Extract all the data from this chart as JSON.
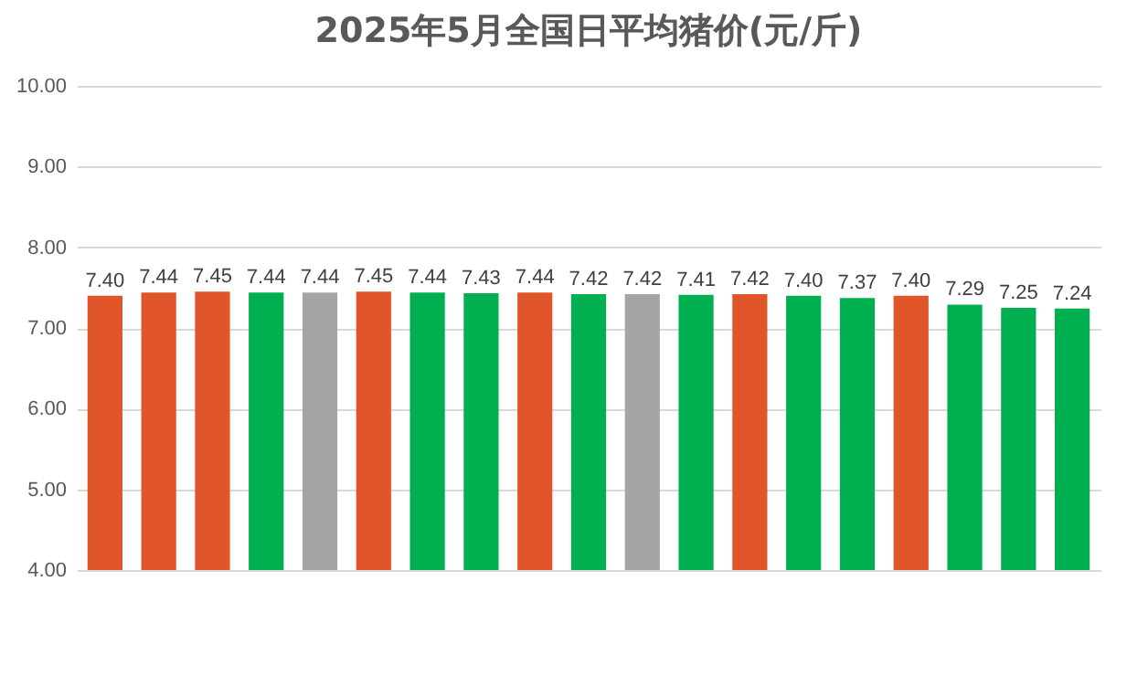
{
  "chart_data": {
    "type": "bar",
    "title": "2025年5月全国日平均猪价(元/斤)",
    "categories": [
      null,
      null,
      null,
      null,
      null,
      null,
      null,
      null,
      null,
      null,
      null,
      null,
      null,
      null,
      null,
      null,
      null,
      null,
      null
    ],
    "values": [
      7.4,
      7.44,
      7.45,
      7.44,
      7.44,
      7.45,
      7.44,
      7.43,
      7.44,
      7.42,
      7.42,
      7.41,
      7.42,
      7.4,
      7.37,
      7.4,
      7.29,
      7.25,
      7.24
    ],
    "value_labels": [
      "7.40",
      "7.44",
      "7.45",
      "7.44",
      "7.44",
      "7.45",
      "7.44",
      "7.43",
      "7.44",
      "7.42",
      "7.42",
      "7.41",
      "7.42",
      "7.40",
      "7.37",
      "7.40",
      "7.29",
      "7.25",
      "7.24"
    ],
    "colors": [
      "#e0562a",
      "#e0562a",
      "#e0562a",
      "#00b050",
      "#a5a5a5",
      "#e0562a",
      "#00b050",
      "#00b050",
      "#e0562a",
      "#00b050",
      "#a5a5a5",
      "#00b050",
      "#e0562a",
      "#00b050",
      "#00b050",
      "#e0562a",
      "#00b050",
      "#00b050",
      "#00b050"
    ],
    "ylim": [
      4,
      10
    ],
    "yticks": [
      {
        "value": 4,
        "label": "4.00"
      },
      {
        "value": 5,
        "label": "5.00"
      },
      {
        "value": 6,
        "label": "6.00"
      },
      {
        "value": 7,
        "label": "7.00"
      },
      {
        "value": 8,
        "label": "8.00"
      },
      {
        "value": 9,
        "label": "9.00"
      },
      {
        "value": 10,
        "label": "10.00"
      }
    ],
    "grid": "y",
    "tick_labels": "y"
  }
}
